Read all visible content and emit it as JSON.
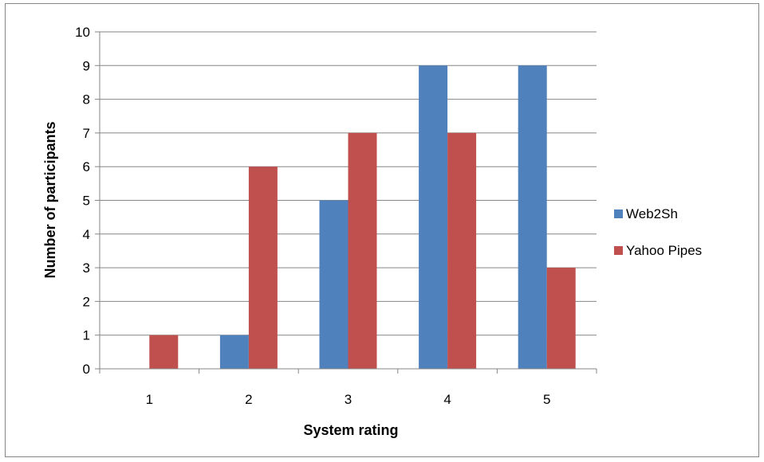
{
  "chart_data": {
    "type": "bar",
    "title": "",
    "xlabel": "System rating",
    "ylabel": "Number of participants",
    "categories": [
      "1",
      "2",
      "3",
      "4",
      "5"
    ],
    "series": [
      {
        "name": "Web2Sh",
        "values": [
          0,
          1,
          5,
          9,
          9
        ],
        "color": "#4f81bd"
      },
      {
        "name": "Yahoo Pipes",
        "values": [
          1,
          6,
          7,
          7,
          3
        ],
        "color": "#c0504d"
      }
    ],
    "ylim": [
      0,
      10
    ],
    "yticks": [
      "0",
      "1",
      "2",
      "3",
      "4",
      "5",
      "6",
      "7",
      "8",
      "9",
      "10"
    ],
    "grid": true,
    "legend_position": "right"
  }
}
